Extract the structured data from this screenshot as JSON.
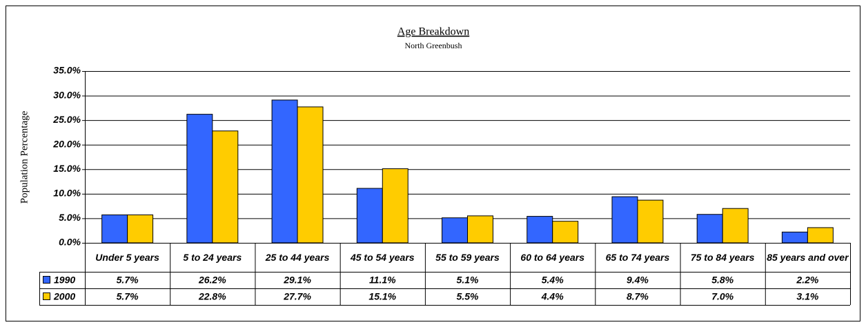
{
  "chart_data": {
    "type": "bar",
    "title": "Age Breakdown",
    "subtitle": "North Greenbush",
    "y_label": "Population Percentage",
    "categories": [
      "Under 5 years",
      "5 to 24 years",
      "25 to 44 years",
      "45 to 54 years",
      "55 to 59 years",
      "60 to 64 years",
      "65 to 74 years",
      "75 to 84 years",
      "85 years and over"
    ],
    "series": [
      {
        "name": "1990",
        "color": "#3366ff",
        "values": [
          5.7,
          26.2,
          29.1,
          11.1,
          5.1,
          5.4,
          9.4,
          5.8,
          2.2
        ],
        "value_labels": [
          "5.7%",
          "26.2%",
          "29.1%",
          "11.1%",
          "5.1%",
          "5.4%",
          "9.4%",
          "5.8%",
          "2.2%"
        ]
      },
      {
        "name": "2000",
        "color": "#ffcc00",
        "values": [
          5.7,
          22.8,
          27.7,
          15.1,
          5.5,
          4.4,
          8.7,
          7.0,
          3.1
        ],
        "value_labels": [
          "5.7%",
          "22.8%",
          "27.7%",
          "15.1%",
          "5.5%",
          "4.4%",
          "8.7%",
          "7.0%",
          "3.1%"
        ]
      }
    ],
    "ylim": [
      0,
      35
    ],
    "yticks": [
      {
        "value": 0,
        "label": "0.0%"
      },
      {
        "value": 5,
        "label": "5.0%"
      },
      {
        "value": 10,
        "label": "10.0%"
      },
      {
        "value": 15,
        "label": "15.0%"
      },
      {
        "value": 20,
        "label": "20.0%"
      },
      {
        "value": 25,
        "label": "25.0%"
      },
      {
        "value": 30,
        "label": "30.0%"
      },
      {
        "value": 35,
        "label": "35.0%"
      }
    ],
    "grid": true
  }
}
